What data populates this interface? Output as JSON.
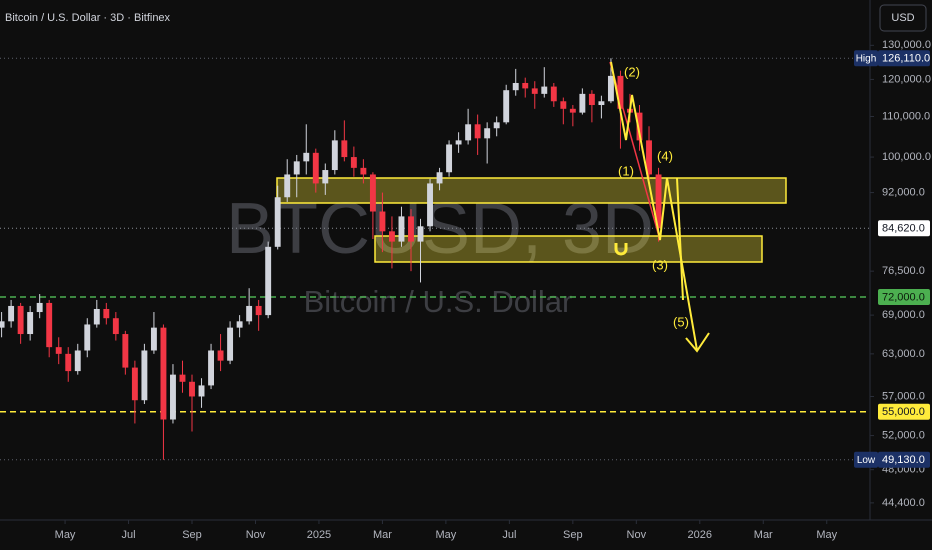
{
  "chart_data": {
    "type": "candlestick",
    "title": "Bitcoin / U.S. Dollar · 3D · Bitfinex",
    "currency": "USD",
    "watermark": {
      "symbol": "BTCUSD, 3D",
      "name": "Bitcoin / U.S. Dollar"
    },
    "up_color": "#d1d4dc",
    "down_color": "#f23645",
    "log_scale": true,
    "grid": false,
    "ylim": [
      42650,
      144600
    ],
    "yticks": [
      {
        "value": 130000,
        "label": "130,000.0"
      },
      {
        "value": 120000,
        "label": "120,000.0"
      },
      {
        "value": 110000,
        "label": "110,000.0"
      },
      {
        "value": 100000,
        "label": "100,000.0"
      },
      {
        "value": 92000,
        "label": "92,000.0"
      },
      {
        "value": 76500,
        "label": "76,500.0"
      },
      {
        "value": 69000,
        "label": "69,000.0"
      },
      {
        "value": 63000,
        "label": "63,000.0"
      },
      {
        "value": 57000,
        "label": "57,000.0"
      },
      {
        "value": 52000,
        "label": "52,000.0"
      },
      {
        "value": 48000,
        "label": "48,000.0"
      },
      {
        "value": 44400,
        "label": "44,400.0"
      }
    ],
    "xlim": [
      1.95,
      29.3
    ],
    "xticks": [
      {
        "value": 4,
        "label": "May"
      },
      {
        "value": 6,
        "label": "Jul"
      },
      {
        "value": 8,
        "label": "Sep"
      },
      {
        "value": 10,
        "label": "Nov"
      },
      {
        "value": 12,
        "label": "2025"
      },
      {
        "value": 14,
        "label": "Mar"
      },
      {
        "value": 16,
        "label": "May"
      },
      {
        "value": 18,
        "label": "Jul"
      },
      {
        "value": 20,
        "label": "Sep"
      },
      {
        "value": 22,
        "label": "Nov"
      },
      {
        "value": 24,
        "label": "2026"
      },
      {
        "value": 26,
        "label": "Mar"
      },
      {
        "value": 28,
        "label": "May"
      }
    ],
    "x": [
      2.0,
      2.3,
      2.6,
      2.9,
      3.2,
      3.5,
      3.8,
      4.1,
      4.4,
      4.7,
      5.0,
      5.3,
      5.6,
      5.9,
      6.2,
      6.5,
      6.8,
      7.1,
      7.4,
      7.7,
      8.0,
      8.3,
      8.6,
      8.9,
      9.2,
      9.5,
      9.8,
      10.1,
      10.4,
      10.7,
      11.0,
      11.3,
      11.6,
      11.9,
      12.2,
      12.5,
      12.8,
      13.1,
      13.4,
      13.7,
      14.0,
      14.3,
      14.6,
      14.9,
      15.2,
      15.5,
      15.8,
      16.1,
      16.4,
      16.7,
      17.0,
      17.3,
      17.6,
      17.9,
      18.2,
      18.5,
      18.8,
      19.1,
      19.4,
      19.7,
      20.0,
      20.3,
      20.6,
      20.9,
      21.2,
      21.5,
      21.8,
      22.1,
      22.4,
      22.7
    ],
    "open": [
      67000,
      68000,
      70500,
      66000,
      69500,
      71000,
      64000,
      63000,
      60500,
      63500,
      67500,
      70000,
      68500,
      66000,
      61000,
      56500,
      63500,
      67000,
      54000,
      60000,
      59000,
      57000,
      58500,
      63500,
      62000,
      67000,
      68000,
      70500,
      69000,
      81000,
      91000,
      96000,
      99000,
      101000,
      94000,
      97000,
      104000,
      100000,
      97500,
      96000,
      88000,
      84000,
      82000,
      87000,
      82000,
      85000,
      94000,
      96500,
      103000,
      104000,
      108000,
      104500,
      107000,
      108500,
      117000,
      119000,
      117500,
      116000,
      118000,
      114000,
      112000,
      111000,
      116000,
      113000,
      114000,
      121000,
      112000,
      111000,
      104000,
      96000
    ],
    "high": [
      69500,
      71500,
      71000,
      70500,
      72500,
      71500,
      65500,
      64000,
      64500,
      68500,
      71500,
      71000,
      69500,
      66500,
      62000,
      64500,
      69500,
      67500,
      61500,
      62000,
      60000,
      59500,
      64500,
      66000,
      68000,
      69000,
      73500,
      71500,
      82000,
      93500,
      99500,
      100500,
      108000,
      102000,
      98500,
      106500,
      109000,
      102500,
      99500,
      96500,
      92000,
      87000,
      89000,
      88500,
      86500,
      95000,
      97500,
      104000,
      106000,
      112000,
      110500,
      108500,
      110000,
      118500,
      123000,
      120500,
      119500,
      123500,
      119000,
      115000,
      113000,
      117500,
      117000,
      115500,
      126110,
      122500,
      116000,
      113000,
      107500,
      97500
    ],
    "low": [
      65500,
      67000,
      64500,
      65000,
      68500,
      62500,
      61500,
      59000,
      60000,
      62500,
      67000,
      67500,
      65000,
      60000,
      53500,
      56000,
      63000,
      49130,
      53500,
      57500,
      52500,
      55500,
      58000,
      60500,
      61500,
      65500,
      67500,
      66500,
      68500,
      80500,
      90000,
      91000,
      96000,
      92000,
      91500,
      96000,
      99000,
      95500,
      94000,
      82500,
      80000,
      77000,
      81000,
      76500,
      74500,
      84000,
      92500,
      95500,
      101000,
      103000,
      100500,
      98500,
      105000,
      108000,
      115500,
      115000,
      112000,
      115000,
      112500,
      108000,
      107500,
      110500,
      108500,
      109500,
      113500,
      102000,
      108500,
      101500,
      94500,
      82000
    ],
    "close": [
      68000,
      70500,
      66000,
      69500,
      71000,
      64000,
      63000,
      60500,
      63500,
      67500,
      70000,
      68500,
      66000,
      61000,
      56500,
      63500,
      67000,
      54000,
      60000,
      59000,
      57000,
      58500,
      63500,
      62000,
      67000,
      68000,
      70500,
      69000,
      81000,
      91000,
      96000,
      99000,
      101000,
      94000,
      97000,
      104000,
      100000,
      97500,
      96000,
      88000,
      84000,
      82000,
      87000,
      82000,
      85000,
      94000,
      96500,
      103000,
      104000,
      108000,
      104500,
      107000,
      108500,
      117000,
      119000,
      117500,
      116000,
      118000,
      114000,
      112000,
      111000,
      116000,
      113000,
      114000,
      121000,
      112000,
      111000,
      104000,
      96000,
      84620
    ],
    "price_lines": [
      {
        "name": "High",
        "value": 126110,
        "label": "126,110.0",
        "color": "#1c3166",
        "text_color": "#ffffff",
        "line_color": "#5d606b",
        "style": "dotted"
      },
      {
        "value": 84620,
        "label": "84,620.0",
        "color": "#ffffff",
        "text_color": "#131722",
        "line_color": "#8a8d96",
        "style": "dotted"
      },
      {
        "value": 72000,
        "label": "72,000.0",
        "color": "#4caf50",
        "text_color": "#0b1a0b",
        "line_color": "#4caf50",
        "style": "dashed"
      },
      {
        "value": 55000,
        "label": "55,000.0",
        "color": "#ffeb3b",
        "text_color": "#131722",
        "line_color": "#ffeb3b",
        "style": "dashed"
      },
      {
        "name": "Low",
        "value": 49130,
        "label": "49,130.0",
        "color": "#1c3166",
        "text_color": "#ffffff",
        "line_color": "#5d606b",
        "style": "dotted"
      }
    ],
    "annotations": [
      "(1)",
      "(2)",
      "(3)",
      "(4)",
      "(5)"
    ]
  }
}
